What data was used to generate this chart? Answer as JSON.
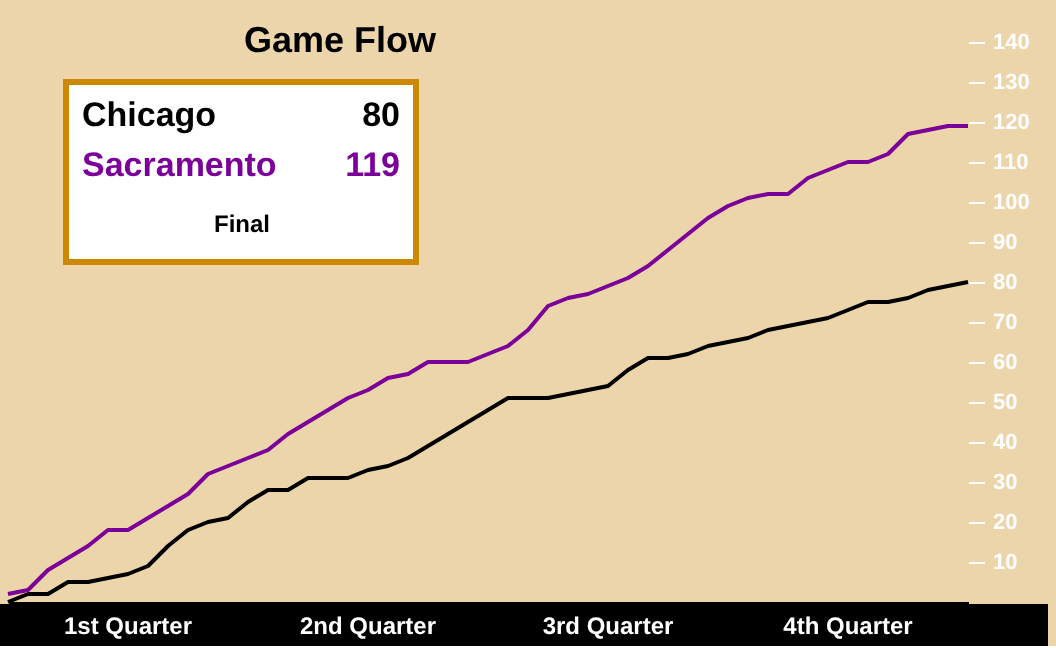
{
  "chart_data": {
    "type": "line",
    "title": "Game Flow",
    "legend": "top left",
    "marker": "none",
    "line_style": "solid",
    "grid": false,
    "annotations": [
      "80",
      "119",
      "Final",
      "1st Quarter",
      "2nd Quarter",
      "3rd Quarter",
      "4th Quarter"
    ],
    "categories": [
      null,
      null,
      null,
      null,
      null,
      null,
      null,
      null,
      null,
      null,
      null,
      null,
      null,
      null,
      null,
      null,
      null,
      null,
      null,
      null,
      null,
      null,
      null,
      null,
      null,
      null,
      null,
      null,
      null,
      null,
      null,
      null,
      null,
      null,
      null,
      null,
      null,
      null,
      null,
      null,
      null,
      null,
      null,
      null,
      null,
      null,
      null,
      null,
      null
    ],
    "ylim": [
      0,
      150
    ],
    "yticks": [
      10,
      20,
      30,
      40,
      50,
      60,
      70,
      80,
      90,
      100,
      110,
      120,
      130,
      140
    ],
    "series": [
      {
        "name": "Chicago",
        "color": "#000000",
        "values": [
          0,
          2,
          2,
          5,
          5,
          6,
          7,
          9,
          14,
          18,
          20,
          21,
          25,
          28,
          28,
          31,
          31,
          31,
          33,
          34,
          36,
          39,
          42,
          45,
          48,
          51,
          51,
          51,
          52,
          53,
          54,
          58,
          61,
          61,
          62,
          64,
          65,
          66,
          68,
          69,
          70,
          71,
          73,
          75,
          75,
          76,
          78,
          79,
          80
        ]
      },
      {
        "name": "Sacramento",
        "color": "#7b0099",
        "values": [
          2,
          3,
          8,
          11,
          14,
          18,
          18,
          21,
          24,
          27,
          32,
          34,
          36,
          38,
          42,
          45,
          48,
          51,
          53,
          56,
          57,
          60,
          60,
          60,
          62,
          64,
          68,
          74,
          76,
          77,
          79,
          81,
          84,
          88,
          92,
          96,
          99,
          101,
          102,
          102,
          106,
          108,
          110,
          110,
          112,
          117,
          118,
          119,
          119
        ]
      }
    ]
  }
}
